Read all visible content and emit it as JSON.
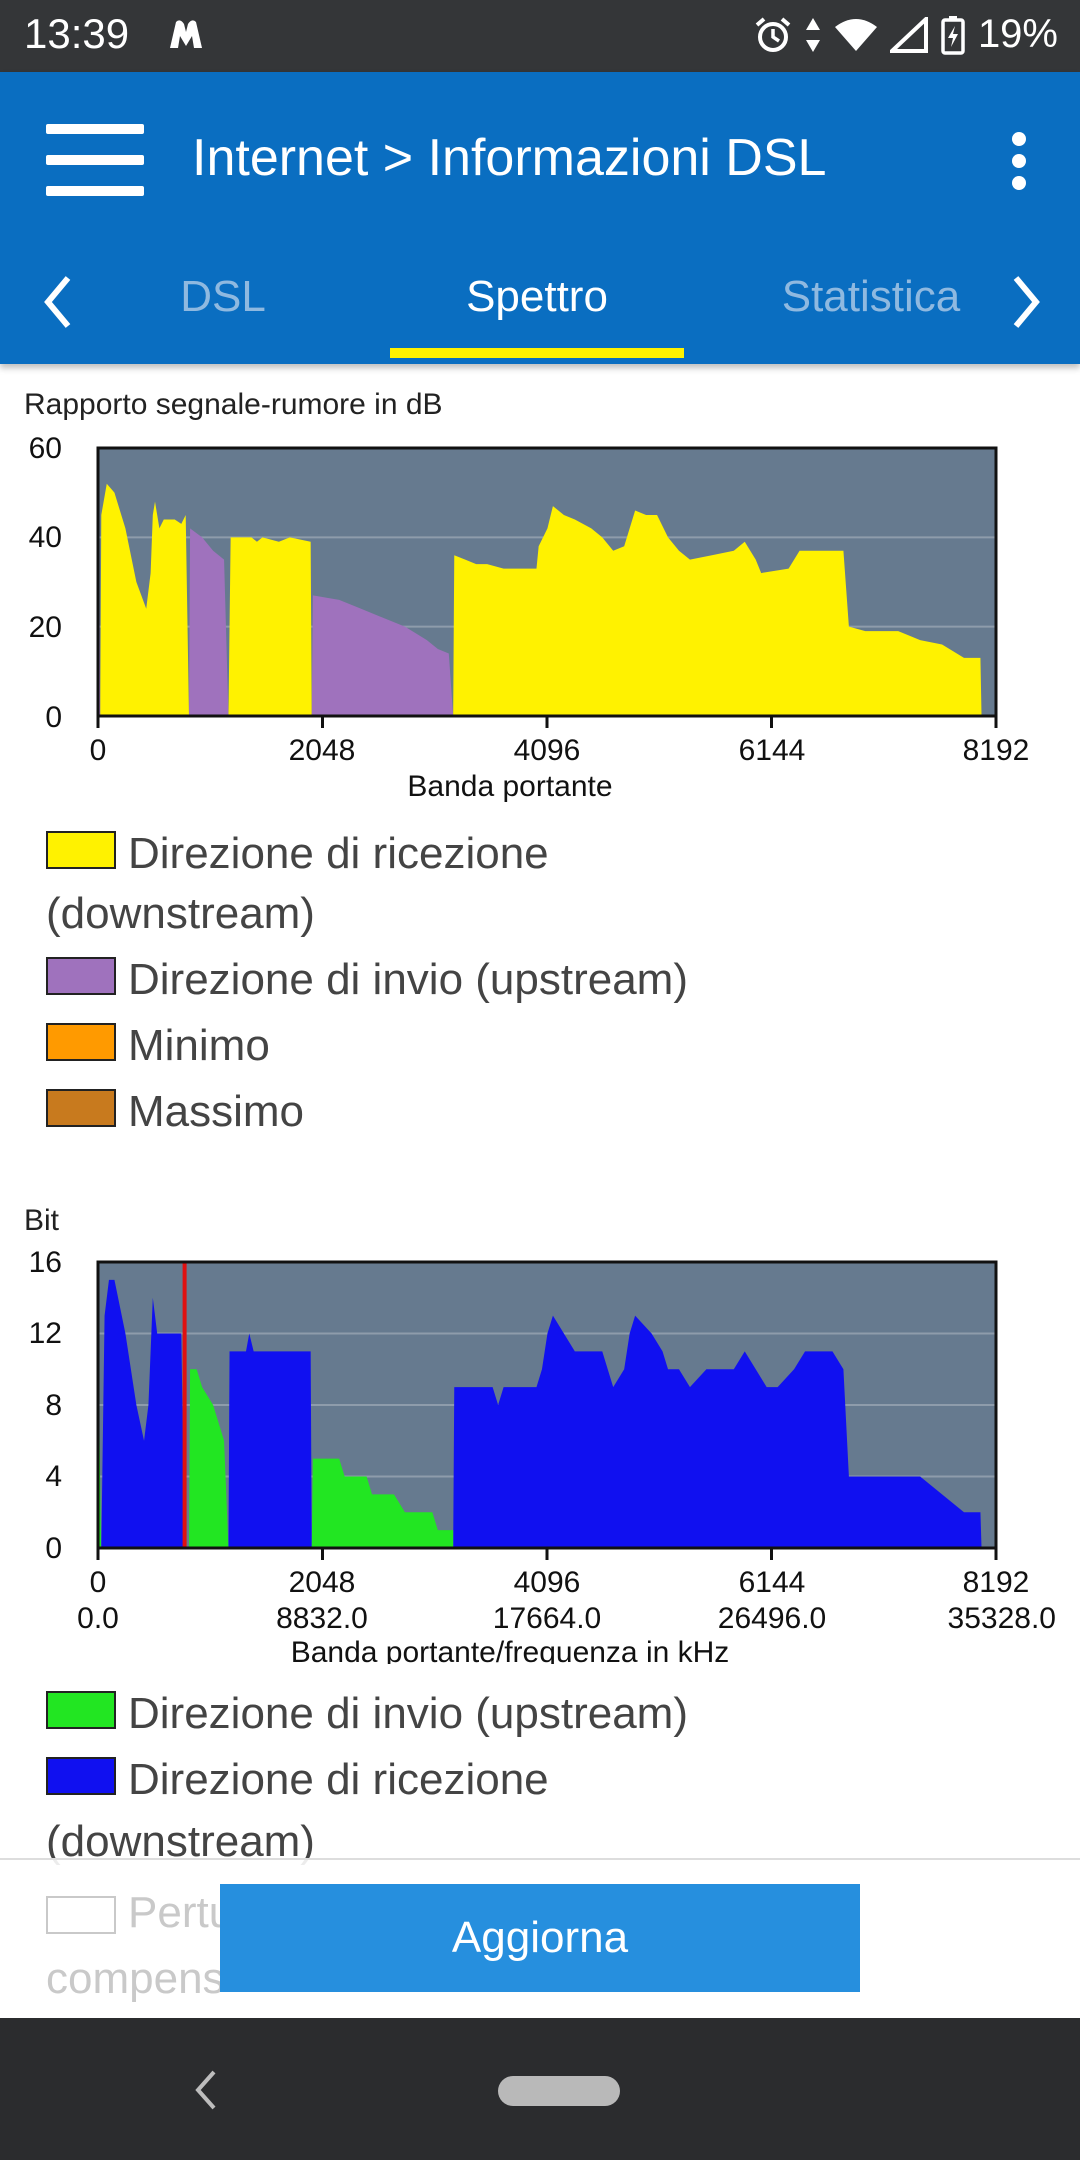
{
  "status_bar": {
    "time": "13:39",
    "battery": "19%",
    "icons": [
      "app-notification-icon",
      "alarm-icon",
      "data-arrows-icon",
      "wifi-icon",
      "signal-icon",
      "battery-charging-icon"
    ]
  },
  "app_bar": {
    "title": "Internet > Informazioni DSL",
    "menu_icon": "hamburger-menu-icon",
    "overflow_icon": "more-vert-icon"
  },
  "tabs": {
    "items": [
      {
        "label": "DSL",
        "active": false
      },
      {
        "label": "Spettro",
        "active": true
      },
      {
        "label": "Statistica",
        "active": false
      }
    ],
    "indicator_color": "#fff200"
  },
  "snr_chart": {
    "title": "Rapporto segnale-rumore in dB",
    "y_ticks": [
      "60",
      "40",
      "20",
      "0"
    ],
    "x_ticks": [
      "0",
      "2048",
      "4096",
      "6144",
      "8192"
    ],
    "xlabel": "Banda portante",
    "legend": [
      {
        "label": "Direzione di ricezione",
        "label_line2": "(downstream)",
        "color": "#fff200"
      },
      {
        "label": "Direzione di invio (upstream)",
        "color": "#9f72bd"
      },
      {
        "label": "Minimo",
        "color": "#ff9a00"
      },
      {
        "label": "Massimo",
        "color": "#c87a1e"
      }
    ]
  },
  "bit_chart": {
    "title": "Bit",
    "y_ticks": [
      "16",
      "12",
      "8",
      "4",
      "0"
    ],
    "x_ticks": [
      "0",
      "2048",
      "4096",
      "6144",
      "8192"
    ],
    "x_ticks_freq": [
      "0.0",
      "8832.0",
      "17664.0",
      "26496.0",
      "35328.0"
    ],
    "xlabel": "Banda portante/frequenza in kHz",
    "legend": [
      {
        "label": "Direzione di invio (upstream)",
        "color": "#22e622"
      },
      {
        "label": "Direzione di ricezione",
        "label_line2": "(downstream)",
        "color": "#1010f0"
      }
    ],
    "faded_legend": {
      "line1": "Pertu",
      "line2": "compens"
    }
  },
  "footer": {
    "refresh_label": "Aggiorna"
  },
  "chart_data": [
    {
      "type": "area",
      "title": "Rapporto segnale-rumore in dB",
      "xlabel": "Banda portante",
      "ylabel": "",
      "xlim": [
        0,
        8192
      ],
      "ylim": [
        0,
        60
      ],
      "grid": true,
      "legend_position": "bottom",
      "series": [
        {
          "name": "Direzione di ricezione (downstream)",
          "color": "#fff200",
          "segments": [
            [
              [
                20,
                0
              ],
              [
                30,
                45
              ],
              [
                80,
                52
              ],
              [
                150,
                50
              ],
              [
                250,
                42
              ],
              [
                350,
                30
              ],
              [
                440,
                24
              ],
              [
                480,
                32
              ],
              [
                500,
                45
              ],
              [
                520,
                48
              ],
              [
                560,
                42
              ],
              [
                600,
                44
              ],
              [
                700,
                44
              ],
              [
                760,
                43
              ],
              [
                800,
                45
              ],
              [
                830,
                0
              ]
            ],
            [
              [
                1190,
                0
              ],
              [
                1210,
                40
              ],
              [
                1400,
                40
              ],
              [
                1450,
                39
              ],
              [
                1500,
                40
              ],
              [
                1650,
                39
              ],
              [
                1750,
                40
              ],
              [
                1940,
                39
              ],
              [
                1950,
                0
              ]
            ],
            [
              [
                3240,
                0
              ],
              [
                3250,
                36
              ],
              [
                3350,
                35
              ],
              [
                3450,
                34
              ],
              [
                3550,
                34
              ],
              [
                3700,
                33
              ],
              [
                4000,
                33
              ],
              [
                4020,
                38
              ],
              [
                4100,
                42
              ],
              [
                4150,
                47
              ],
              [
                4250,
                45
              ],
              [
                4350,
                44
              ],
              [
                4500,
                42
              ],
              [
                4600,
                40
              ],
              [
                4700,
                37
              ],
              [
                4800,
                38
              ],
              [
                4850,
                42
              ],
              [
                4900,
                46
              ],
              [
                5000,
                45
              ],
              [
                5100,
                45
              ],
              [
                5200,
                40
              ],
              [
                5300,
                37
              ],
              [
                5400,
                35
              ],
              [
                5600,
                36
              ],
              [
                5800,
                37
              ],
              [
                5900,
                39
              ],
              [
                6000,
                35
              ],
              [
                6050,
                32
              ],
              [
                6300,
                33
              ],
              [
                6400,
                37
              ],
              [
                6800,
                37
              ],
              [
                6850,
                20
              ],
              [
                7000,
                19
              ],
              [
                7300,
                19
              ],
              [
                7500,
                17
              ],
              [
                7700,
                16
              ],
              [
                7900,
                13
              ],
              [
                8050,
                13
              ],
              [
                8060,
                0
              ]
            ]
          ]
        },
        {
          "name": "Direzione di invio (upstream)",
          "color": "#9f72bd",
          "segments": [
            [
              [
                0,
                0
              ],
              [
                10,
                38
              ],
              [
                20,
                0
              ]
            ],
            [
              [
                830,
                0
              ],
              [
                840,
                42
              ],
              [
                950,
                40
              ],
              [
                1050,
                37
              ],
              [
                1150,
                35
              ],
              [
                1190,
                0
              ]
            ],
            [
              [
                1950,
                0
              ],
              [
                1960,
                27
              ],
              [
                2200,
                26
              ],
              [
                2400,
                24
              ],
              [
                2600,
                22
              ],
              [
                2800,
                20
              ],
              [
                3000,
                17
              ],
              [
                3100,
                15
              ],
              [
                3200,
                14
              ],
              [
                3240,
                0
              ]
            ]
          ]
        }
      ]
    },
    {
      "type": "area",
      "title": "Bit",
      "xlabel": "Banda portante/frequenza in kHz",
      "ylabel": "",
      "xlim": [
        0,
        8192
      ],
      "ylim": [
        0,
        16
      ],
      "grid": true,
      "legend_position": "bottom",
      "series": [
        {
          "name": "Direzione di ricezione (downstream)",
          "color": "#1010f0",
          "segments": [
            [
              [
                30,
                0
              ],
              [
                60,
                13
              ],
              [
                100,
                15
              ],
              [
                150,
                15
              ],
              [
                250,
                12
              ],
              [
                350,
                8
              ],
              [
                420,
                6
              ],
              [
                460,
                8
              ],
              [
                500,
                14
              ],
              [
                540,
                12
              ],
              [
                700,
                12
              ],
              [
                760,
                12
              ],
              [
                790,
                0
              ]
            ],
            [
              [
                1190,
                0
              ],
              [
                1200,
                11
              ],
              [
                1350,
                11
              ],
              [
                1380,
                12
              ],
              [
                1420,
                11
              ],
              [
                1940,
                11
              ],
              [
                1950,
                0
              ]
            ],
            [
              [
                3240,
                0
              ],
              [
                3250,
                9
              ],
              [
                3600,
                9
              ],
              [
                3650,
                8
              ],
              [
                3700,
                9
              ],
              [
                4000,
                9
              ],
              [
                4050,
                10
              ],
              [
                4100,
                12
              ],
              [
                4150,
                13
              ],
              [
                4250,
                12
              ],
              [
                4350,
                11
              ],
              [
                4500,
                11
              ],
              [
                4600,
                11
              ],
              [
                4700,
                9
              ],
              [
                4800,
                10
              ],
              [
                4850,
                12
              ],
              [
                4900,
                13
              ],
              [
                5050,
                12
              ],
              [
                5150,
                11
              ],
              [
                5200,
                10
              ],
              [
                5300,
                10
              ],
              [
                5400,
                9
              ],
              [
                5550,
                10
              ],
              [
                5800,
                10
              ],
              [
                5900,
                11
              ],
              [
                6000,
                10
              ],
              [
                6100,
                9
              ],
              [
                6200,
                9
              ],
              [
                6350,
                10
              ],
              [
                6450,
                11
              ],
              [
                6700,
                11
              ],
              [
                6800,
                10
              ],
              [
                6850,
                4
              ],
              [
                7000,
                4
              ],
              [
                7300,
                4
              ],
              [
                7500,
                4
              ],
              [
                7700,
                3
              ],
              [
                7900,
                2
              ],
              [
                8050,
                2
              ],
              [
                8060,
                0
              ]
            ]
          ]
        },
        {
          "name": "Direzione di invio (upstream)",
          "color": "#22e622",
          "segments": [
            [
              [
                0,
                0
              ],
              [
                8,
                9
              ],
              [
                28,
                0
              ]
            ],
            [
              [
                830,
                0
              ],
              [
                840,
                10
              ],
              [
                900,
                10
              ],
              [
                950,
                9
              ],
              [
                1050,
                8
              ],
              [
                1100,
                7
              ],
              [
                1150,
                6
              ],
              [
                1190,
                0
              ]
            ],
            [
              [
                1950,
                0
              ],
              [
                1960,
                5
              ],
              [
                2200,
                5
              ],
              [
                2250,
                4
              ],
              [
                2450,
                4
              ],
              [
                2500,
                3
              ],
              [
                2700,
                3
              ],
              [
                2800,
                2
              ],
              [
                3050,
                2
              ],
              [
                3100,
                1
              ],
              [
                3240,
                1
              ],
              [
                3240,
                0
              ]
            ]
          ]
        }
      ],
      "marker": {
        "x": 790,
        "color": "#e01010"
      }
    }
  ]
}
